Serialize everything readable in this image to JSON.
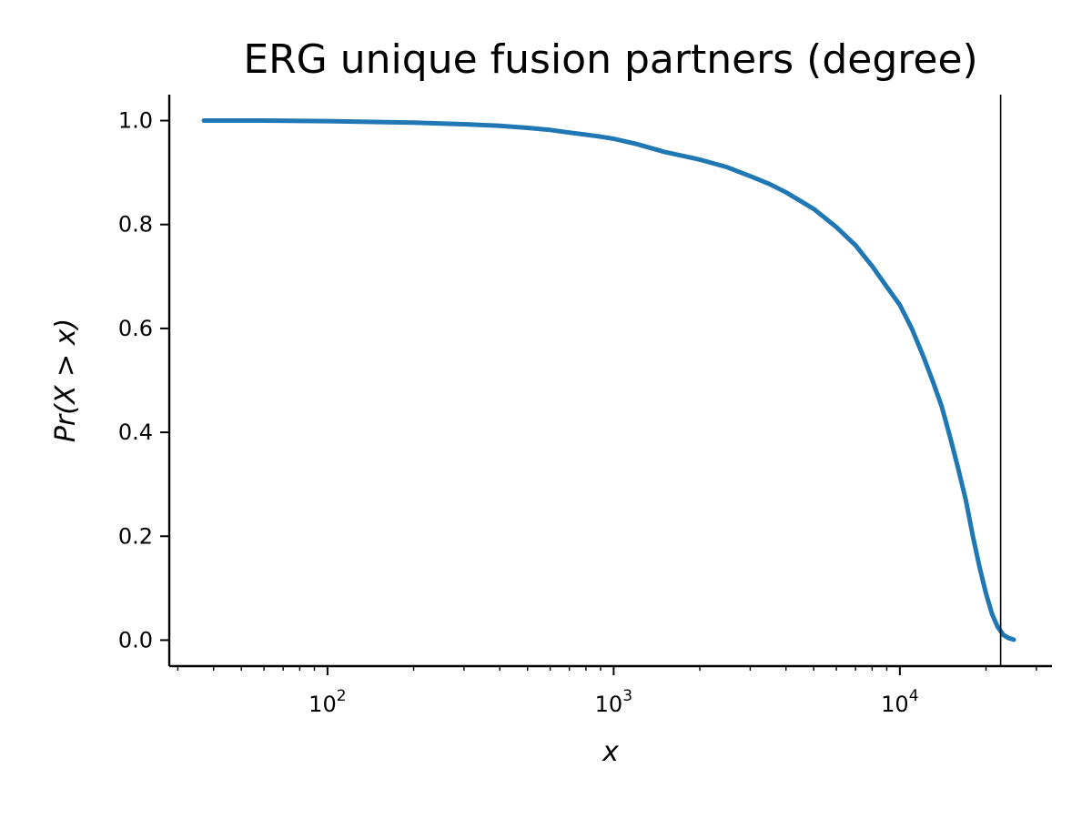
{
  "chart_data": {
    "type": "line",
    "title": "ERG unique fusion partners (degree)",
    "xlabel": "x",
    "ylabel": "Pr(X > x)",
    "xscale": "log",
    "xlim": [
      28,
      34000
    ],
    "ylim": [
      -0.05,
      1.05
    ],
    "grid": false,
    "legend": "none",
    "x_ticks": [
      {
        "value": 100,
        "base": "10",
        "exp": "2"
      },
      {
        "value": 1000,
        "base": "10",
        "exp": "3"
      },
      {
        "value": 10000,
        "base": "10",
        "exp": "4"
      }
    ],
    "y_ticks": [
      "0.0",
      "0.2",
      "0.4",
      "0.6",
      "0.8",
      "1.0"
    ],
    "series": [
      {
        "color": "#1f77b4",
        "x": [
          37,
          60,
          100,
          200,
          300,
          400,
          500,
          600,
          700,
          800,
          900,
          1000,
          1200,
          1500,
          2000,
          2500,
          3000,
          3500,
          4000,
          5000,
          6000,
          7000,
          8000,
          9000,
          10000,
          11000,
          12000,
          13000,
          14000,
          15000,
          16000,
          17000,
          18000,
          19000,
          20000,
          21000,
          22000,
          23000,
          24000,
          25000
        ],
        "y": [
          1.0,
          1.0,
          0.999,
          0.996,
          0.993,
          0.99,
          0.986,
          0.982,
          0.977,
          0.973,
          0.969,
          0.965,
          0.955,
          0.94,
          0.925,
          0.91,
          0.893,
          0.878,
          0.862,
          0.83,
          0.795,
          0.76,
          0.72,
          0.68,
          0.645,
          0.6,
          0.55,
          0.5,
          0.45,
          0.39,
          0.33,
          0.27,
          0.2,
          0.14,
          0.09,
          0.05,
          0.025,
          0.01,
          0.004,
          0.001
        ]
      }
    ],
    "annotations": [
      {
        "type": "vertical-line",
        "x": 22500,
        "color": "#000000"
      }
    ]
  }
}
